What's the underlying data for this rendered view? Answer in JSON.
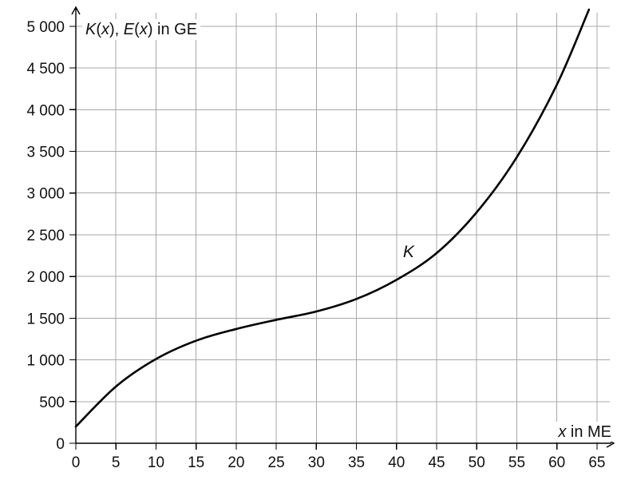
{
  "chart_data": {
    "type": "line",
    "ylabel": {
      "parts": [
        "K",
        "(",
        "x",
        "), ",
        "E",
        "(",
        "x",
        ") in GE"
      ]
    },
    "xlabel": {
      "parts": [
        "x",
        " in ME"
      ]
    },
    "xlim": [
      0,
      67
    ],
    "ylim": [
      0,
      5200
    ],
    "x_ticks": [
      0,
      5,
      10,
      15,
      20,
      25,
      30,
      35,
      40,
      45,
      50,
      55,
      60,
      65
    ],
    "x_tick_labels": [
      "0",
      "5",
      "10",
      "15",
      "20",
      "25",
      "30",
      "35",
      "40",
      "45",
      "50",
      "55",
      "60",
      "65"
    ],
    "y_ticks": [
      0,
      500,
      1000,
      1500,
      2000,
      2500,
      3000,
      3500,
      4000,
      4500,
      5000
    ],
    "y_tick_labels": [
      "0",
      "500",
      "1 000",
      "1 500",
      "2 000",
      "2 500",
      "3 000",
      "3 500",
      "4 000",
      "4 500",
      "5 000"
    ],
    "grid": true,
    "series": [
      {
        "name": "K",
        "x": [
          0,
          5,
          10,
          15,
          20,
          25,
          30,
          35,
          40,
          45,
          50,
          55,
          60,
          64
        ],
        "y": [
          200,
          680,
          1010,
          1230,
          1370,
          1480,
          1580,
          1730,
          1960,
          2280,
          2770,
          3430,
          4300,
          5200
        ]
      }
    ],
    "annotations": [
      {
        "text": "K",
        "x": 41.5,
        "y": 2230
      }
    ]
  }
}
